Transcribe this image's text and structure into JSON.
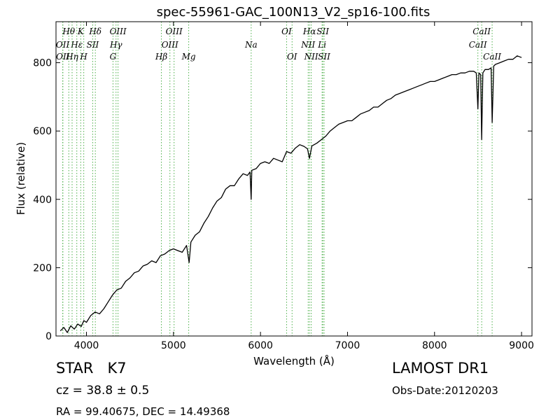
{
  "chart_data": {
    "type": "line",
    "title": "spec-55961-GAC_100N13_V2_sp16-100.fits",
    "xlabel": "Wavelength (Å)",
    "ylabel": "Flux (relative)",
    "xlim": [
      3650,
      9120
    ],
    "ylim": [
      0,
      920
    ],
    "x_ticks": [
      4000,
      5000,
      6000,
      7000,
      8000,
      9000
    ],
    "y_ticks": [
      0,
      200,
      400,
      600,
      800
    ],
    "grid": false,
    "legend": "none",
    "colors": {
      "spectrum": "#000000",
      "lines": "#4daf4a"
    },
    "series": [
      {
        "x": [
          3700,
          3740,
          3780,
          3820,
          3860,
          3900,
          3940,
          3970,
          4000,
          4050,
          4100,
          4150,
          4200,
          4250,
          4300,
          4350,
          4400,
          4450,
          4500,
          4550,
          4600,
          4650,
          4700,
          4750,
          4800,
          4850,
          4900,
          4950,
          5000,
          5050,
          5100,
          5150,
          5180,
          5200,
          5250,
          5300,
          5350,
          5400,
          5450,
          5500,
          5550,
          5600,
          5650,
          5700,
          5750,
          5800,
          5850,
          5880,
          5893,
          5900,
          5950,
          6000,
          6050,
          6100,
          6150,
          6200,
          6250,
          6300,
          6350,
          6400,
          6450,
          6500,
          6540,
          6563,
          6590,
          6650,
          6700,
          6750,
          6800,
          6850,
          6900,
          6950,
          7000,
          7050,
          7100,
          7150,
          7200,
          7250,
          7300,
          7350,
          7400,
          7450,
          7500,
          7550,
          7600,
          7650,
          7700,
          7750,
          7800,
          7850,
          7900,
          7950,
          8000,
          8050,
          8100,
          8150,
          8200,
          8250,
          8300,
          8350,
          8400,
          8450,
          8480,
          8498,
          8510,
          8530,
          8542,
          8555,
          8580,
          8620,
          8650,
          8662,
          8680,
          8700,
          8750,
          8800,
          8850,
          8900,
          8950,
          9000
        ],
        "y": [
          15,
          25,
          10,
          30,
          20,
          35,
          28,
          45,
          40,
          60,
          70,
          65,
          80,
          100,
          120,
          135,
          140,
          160,
          170,
          185,
          190,
          205,
          210,
          220,
          215,
          235,
          240,
          250,
          255,
          250,
          245,
          265,
          215,
          275,
          295,
          305,
          330,
          350,
          375,
          395,
          405,
          430,
          440,
          440,
          460,
          475,
          470,
          480,
          400,
          485,
          490,
          505,
          510,
          505,
          520,
          515,
          510,
          540,
          535,
          550,
          560,
          555,
          548,
          520,
          556,
          565,
          575,
          585,
          600,
          610,
          620,
          625,
          630,
          630,
          640,
          650,
          655,
          660,
          670,
          670,
          680,
          690,
          695,
          705,
          710,
          715,
          720,
          725,
          730,
          735,
          740,
          745,
          745,
          750,
          755,
          760,
          765,
          765,
          770,
          770,
          775,
          775,
          770,
          665,
          770,
          765,
          575,
          770,
          780,
          780,
          785,
          625,
          790,
          795,
          800,
          805,
          810,
          810,
          820,
          815
        ]
      }
    ],
    "line_markers": [
      {
        "label": "Hθ",
        "x": 3797,
        "row": 0
      },
      {
        "label": "K",
        "x": 3934,
        "row": 0
      },
      {
        "label": "Hδ",
        "x": 4102,
        "row": 0
      },
      {
        "label": "OIII",
        "x": 4363,
        "row": 0
      },
      {
        "label": "OIII",
        "x": 5007,
        "row": 0
      },
      {
        "label": "OI",
        "x": 6300,
        "row": 0
      },
      {
        "label": "Hα",
        "x": 6563,
        "row": 0
      },
      {
        "label": "SII",
        "x": 6716,
        "row": 0
      },
      {
        "label": "CaII",
        "x": 8542,
        "row": 0
      },
      {
        "label": "OII",
        "x": 3727,
        "row": 1
      },
      {
        "label": "Hε",
        "x": 3889,
        "row": 1
      },
      {
        "label": "SII",
        "x": 4072,
        "row": 1
      },
      {
        "label": "Hγ",
        "x": 4340,
        "row": 1
      },
      {
        "label": "OIII",
        "x": 4959,
        "row": 1
      },
      {
        "label": "Na",
        "x": 5893,
        "row": 1
      },
      {
        "label": "NII",
        "x": 6548,
        "row": 1
      },
      {
        "label": "Li",
        "x": 6708,
        "row": 1
      },
      {
        "label": "CaII",
        "x": 8498,
        "row": 1
      },
      {
        "label": "OII",
        "x": 3729,
        "row": 2
      },
      {
        "label": "Hη",
        "x": 3835,
        "row": 2
      },
      {
        "label": "H",
        "x": 3969,
        "row": 2
      },
      {
        "label": "G",
        "x": 4305,
        "row": 2
      },
      {
        "label": "Hβ",
        "x": 4861,
        "row": 2
      },
      {
        "label": "Mg",
        "x": 5175,
        "row": 2
      },
      {
        "label": "OI",
        "x": 6363,
        "row": 2
      },
      {
        "label": "NII",
        "x": 6583,
        "row": 2
      },
      {
        "label": "SII",
        "x": 6731,
        "row": 2
      },
      {
        "label": "CaII",
        "x": 8662,
        "row": 2
      }
    ]
  },
  "info": {
    "class": "STAR",
    "subclass": "K7",
    "cz": "cz = 38.8 ± 0.5",
    "coords": "RA = 99.40675, DEC = 14.49368",
    "survey": "LAMOST DR1",
    "obs_date": "Obs-Date:20120203"
  }
}
